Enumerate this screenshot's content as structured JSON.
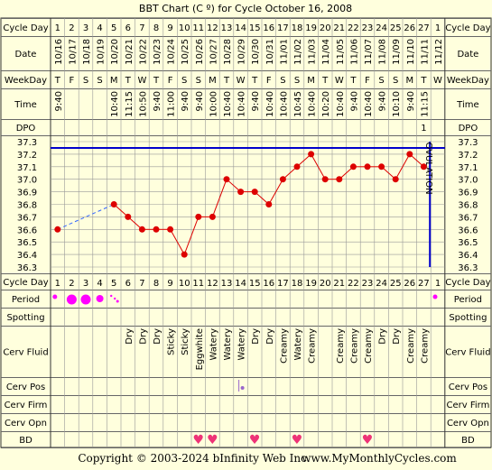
{
  "title": "BBT Chart (C º) for Cycle October 16, 2008",
  "footer": {
    "copyright": "Copyright © 2003-2024 bInfinity Web Inc.",
    "url": "www.MyMonthlyCycles.com"
  },
  "row_labels": {
    "cycle_day": "Cycle Day",
    "date": "Date",
    "weekday": "WeekDay",
    "time": "Time",
    "dpo": "DPO",
    "period": "Period",
    "spotting": "Spotting",
    "cerv_fluid": "Cerv Fluid",
    "cerv_pos": "Cerv Pos",
    "cerv_firm": "Cerv Firm",
    "cerv_opn": "Cerv Opn",
    "bd": "BD"
  },
  "ovulation_label": "OVULATION",
  "colors": {
    "background": "#ffffdd",
    "grid": "#999999",
    "line": "#dd0000",
    "ovulation": "#0000cc",
    "heart": "#ee3377",
    "period": "#ff00ff"
  },
  "days": [
    {
      "cd": "1",
      "date": "10/16",
      "wd": "T",
      "time": "9:40",
      "period": "small",
      "cf": "",
      "cp": "",
      "bd": false
    },
    {
      "cd": "2",
      "date": "10/17",
      "wd": "F",
      "time": "",
      "period": "big",
      "cf": "",
      "cp": "",
      "bd": false
    },
    {
      "cd": "3",
      "date": "10/18",
      "wd": "S",
      "time": "",
      "period": "big",
      "cf": "",
      "cp": "",
      "bd": false
    },
    {
      "cd": "4",
      "date": "10/19",
      "wd": "S",
      "time": "",
      "period": "medium",
      "cf": "",
      "cp": "",
      "bd": false
    },
    {
      "cd": "5",
      "date": "10/20",
      "wd": "M",
      "time": "10:40",
      "period": "spots",
      "cf": "",
      "cp": "",
      "bd": false
    },
    {
      "cd": "6",
      "date": "10/21",
      "wd": "T",
      "time": "11:15",
      "period": "",
      "cf": "Dry",
      "cp": "",
      "bd": false
    },
    {
      "cd": "7",
      "date": "10/22",
      "wd": "W",
      "time": "10:50",
      "period": "",
      "cf": "Dry",
      "cp": "",
      "bd": false
    },
    {
      "cd": "8",
      "date": "10/23",
      "wd": "T",
      "time": "9:40",
      "period": "",
      "cf": "Dry",
      "cp": "",
      "bd": false
    },
    {
      "cd": "9",
      "date": "10/24",
      "wd": "F",
      "time": "11:00",
      "period": "",
      "cf": "Sticky",
      "cp": "",
      "bd": false
    },
    {
      "cd": "10",
      "date": "10/25",
      "wd": "S",
      "time": "9:40",
      "period": "",
      "cf": "Sticky",
      "cp": "",
      "bd": false
    },
    {
      "cd": "11",
      "date": "10/26",
      "wd": "S",
      "time": "9:40",
      "period": "",
      "cf": "Eggwhite",
      "cp": "",
      "bd": true
    },
    {
      "cd": "12",
      "date": "10/27",
      "wd": "M",
      "time": "10:00",
      "period": "",
      "cf": "Watery",
      "cp": "",
      "bd": true
    },
    {
      "cd": "13",
      "date": "10/28",
      "wd": "T",
      "time": "10:40",
      "period": "",
      "cf": "Watery",
      "cp": "",
      "bd": false
    },
    {
      "cd": "14",
      "date": "10/29",
      "wd": "W",
      "time": "10:40",
      "period": "",
      "cf": "Watery",
      "cp": "low",
      "bd": false
    },
    {
      "cd": "15",
      "date": "10/30",
      "wd": "T",
      "time": "9:40",
      "period": "",
      "cf": "Dry",
      "cp": "",
      "bd": true
    },
    {
      "cd": "16",
      "date": "10/31",
      "wd": "F",
      "time": "10:40",
      "period": "",
      "cf": "Dry",
      "cp": "",
      "bd": false
    },
    {
      "cd": "17",
      "date": "11/01",
      "wd": "S",
      "time": "10:40",
      "period": "",
      "cf": "Creamy",
      "cp": "",
      "bd": false
    },
    {
      "cd": "18",
      "date": "11/02",
      "wd": "S",
      "time": "10:45",
      "period": "",
      "cf": "Watery",
      "cp": "",
      "bd": true
    },
    {
      "cd": "19",
      "date": "11/03",
      "wd": "M",
      "time": "10:40",
      "period": "",
      "cf": "Creamy",
      "cp": "",
      "bd": false
    },
    {
      "cd": "20",
      "date": "11/04",
      "wd": "T",
      "time": "10:20",
      "period": "",
      "cf": "",
      "cp": "",
      "bd": false
    },
    {
      "cd": "21",
      "date": "11/05",
      "wd": "W",
      "time": "10:40",
      "period": "",
      "cf": "Creamy",
      "cp": "",
      "bd": false
    },
    {
      "cd": "22",
      "date": "11/06",
      "wd": "T",
      "time": "9:40",
      "period": "",
      "cf": "Creamy",
      "cp": "",
      "bd": false
    },
    {
      "cd": "23",
      "date": "11/07",
      "wd": "F",
      "time": "10:40",
      "period": "",
      "cf": "Creamy",
      "cp": "",
      "bd": true
    },
    {
      "cd": "24",
      "date": "11/08",
      "wd": "S",
      "time": "9:40",
      "period": "",
      "cf": "Dry",
      "cp": "",
      "bd": false
    },
    {
      "cd": "25",
      "date": "11/09",
      "wd": "S",
      "time": "10:10",
      "period": "",
      "cf": "Dry",
      "cp": "",
      "bd": false
    },
    {
      "cd": "26",
      "date": "11/10",
      "wd": "M",
      "time": "9:40",
      "period": "",
      "cf": "Creamy",
      "cp": "",
      "bd": false
    },
    {
      "cd": "27",
      "date": "11/11",
      "wd": "T",
      "time": "11:15",
      "period": "",
      "cf": "Creamy",
      "cp": "",
      "bd": false
    },
    {
      "cd": "1",
      "date": "11/12",
      "wd": "W",
      "time": "",
      "period": "small",
      "cf": "",
      "cp": "",
      "bd": false
    }
  ],
  "dpo_values": [
    {
      "col": 27,
      "label": "1"
    }
  ],
  "chart_data": {
    "type": "line",
    "title": "BBT Chart (C º) for Cycle October 16, 2008",
    "x_label": "Cycle Day",
    "y_ticks": [
      "37.3",
      "37.2",
      "37.1",
      "37.0",
      "36.9",
      "36.8",
      "36.7",
      "36.6",
      "36.5",
      "36.4",
      "36.3"
    ],
    "ylim": [
      36.3,
      37.3
    ],
    "x": [
      1,
      2,
      3,
      4,
      5,
      6,
      7,
      8,
      9,
      10,
      11,
      12,
      13,
      14,
      15,
      16,
      17,
      18,
      19,
      20,
      21,
      22,
      23,
      24,
      25,
      26,
      27
    ],
    "temps": [
      36.6,
      null,
      null,
      null,
      36.8,
      36.7,
      36.6,
      36.6,
      36.6,
      36.4,
      36.7,
      36.7,
      37.0,
      36.9,
      36.9,
      36.8,
      37.0,
      37.1,
      37.2,
      37.0,
      37.0,
      37.1,
      37.1,
      37.1,
      37.0,
      37.2,
      37.1
    ],
    "coverline": 37.25,
    "ovulation_day": 27
  }
}
